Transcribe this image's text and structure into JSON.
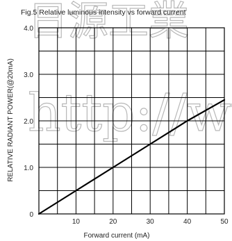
{
  "chart_data": {
    "type": "line",
    "title": "Fig.5  Relative luminous intensity vs forward current",
    "xlabel": "Forward current (mA)",
    "ylabel": "RELATIVE RADIANT POWER(@20mA)",
    "xlim": [
      0,
      50
    ],
    "ylim": [
      0,
      4.0
    ],
    "x_ticks": [
      10,
      20,
      30,
      40,
      50
    ],
    "x_tick_labels": [
      "10",
      "20",
      "30",
      "40",
      "50"
    ],
    "y_ticks": [
      0,
      1.0,
      2.0,
      3.0,
      4.0
    ],
    "y_tick_labels": [
      "0",
      "1.0",
      "2.0",
      "3.0",
      "4.0"
    ],
    "grid": true,
    "series": [
      {
        "x": [
          0,
          10,
          20,
          30,
          40,
          50
        ],
        "y": [
          0,
          0.5,
          1.0,
          1.5,
          2.0,
          2.45
        ]
      }
    ]
  },
  "colors": {
    "line": "#000000",
    "grid": "#000000",
    "text": "#222222",
    "watermark": "#b8b8b8"
  },
  "watermark": {
    "line1": "日源工業",
    "line2": "http://ww"
  }
}
